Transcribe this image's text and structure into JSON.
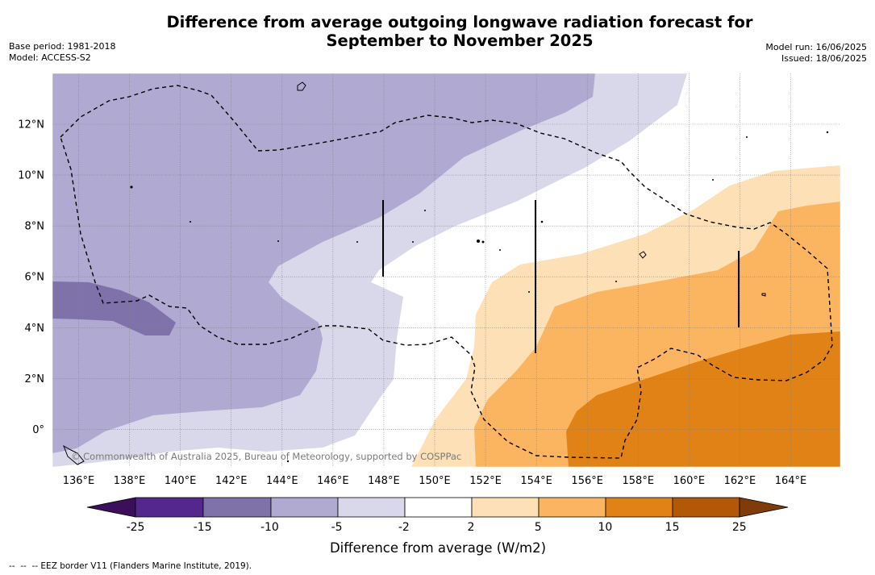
{
  "header": {
    "title_line1": "Difference from average outgoing longwave radiation forecast for",
    "title_line2": "September to November 2025",
    "base_period": "Base period: 1981-2018",
    "model": "Model: ACCESS-S2",
    "model_run": "Model run: 16/06/2025",
    "issued": "Issued: 18/06/2025"
  },
  "map": {
    "lon_ticks": [
      "136°E",
      "138°E",
      "140°E",
      "142°E",
      "144°E",
      "146°E",
      "148°E",
      "150°E",
      "152°E",
      "154°E",
      "156°E",
      "158°E",
      "160°E",
      "162°E",
      "164°E"
    ],
    "lat_ticks": [
      "12°N",
      "10°N",
      "8°N",
      "6°N",
      "4°N",
      "2°N",
      "0°"
    ],
    "credit": "© Commonwealth of Australia 2025, Bureau of Meteorology, supported by COSPPac",
    "colors": {
      "minus25": "#3b0f5c",
      "minus25_to_minus15": "#54278f",
      "minus15_to_minus10": "#7f72ab",
      "minus10_to_minus5": "#b0a9d2",
      "minus5_to_minus2": "#d8d8ea",
      "minus2_to_2": "#ffffff",
      "p2_to_p5": "#fde0b5",
      "p5_to_p10": "#fbb45f",
      "p10_to_p15": "#e08216",
      "p15_to_p25": "#b35807",
      "p25": "#7f3b08",
      "eez_line": "#000000",
      "grid_line": "#808080"
    }
  },
  "colorbar": {
    "labels": [
      "-25",
      "-15",
      "-10",
      "-5",
      "-2",
      "2",
      "5",
      "10",
      "15",
      "25"
    ],
    "title": "Difference from average (W/m2)"
  },
  "footnote": "--  --  -- EEZ border V11 (Flanders Marine Institute, 2019)."
}
